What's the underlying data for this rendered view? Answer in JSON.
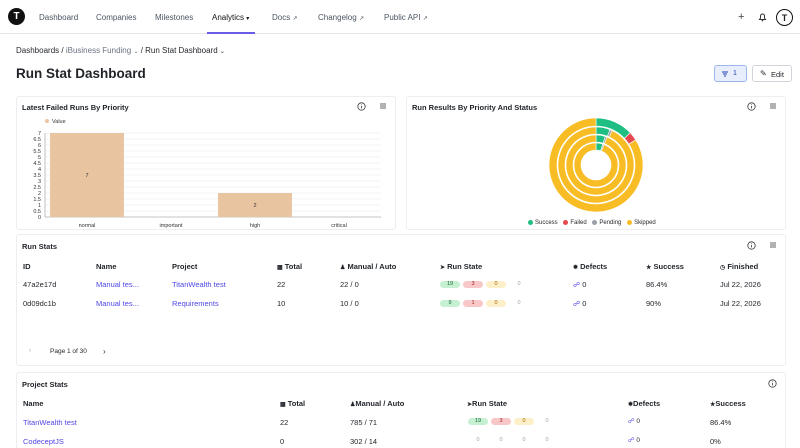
{
  "nav": {
    "items": [
      {
        "label": "Dashboard"
      },
      {
        "label": "Companies"
      },
      {
        "label": "Milestones"
      },
      {
        "label": "Analytics"
      },
      {
        "label": "Docs"
      },
      {
        "label": "Changelog"
      },
      {
        "label": "Public API"
      }
    ],
    "logo_letter": "T",
    "avatar_letter": "T"
  },
  "breadcrumb": {
    "root": "Dashboards",
    "company": "iBusiness Funding",
    "current": "Run Stat Dashboard"
  },
  "page_title": "Run Stat Dashboard",
  "toolbar": {
    "filter_count": "1",
    "edit_label": "Edit"
  },
  "card_failed": {
    "title": "Latest Failed Runs By Priority",
    "legend": "Value"
  },
  "card_results": {
    "title": "Run Results By Priority And Status",
    "legend": [
      "Success",
      "Failed",
      "Pending",
      "Skipped"
    ]
  },
  "colors": {
    "accent": "#6b5ce7",
    "success": "#1fbf83",
    "failed": "#e5484d",
    "pending": "#9aa0a6",
    "skipped": "#f8bd24",
    "bar": "#e9c4a1"
  },
  "chart_data": [
    {
      "type": "bar",
      "title": "Latest Failed Runs By Priority",
      "categories": [
        "normal",
        "important",
        "high",
        "critical"
      ],
      "values": [
        7,
        0,
        2,
        0
      ],
      "series": [
        {
          "name": "Value",
          "values": [
            7,
            0,
            2,
            0
          ]
        }
      ],
      "ylim": [
        0,
        7
      ],
      "yticks": [
        "0",
        "0.5",
        "1",
        "1.5",
        "2",
        "2.5",
        "3",
        "3.5",
        "4",
        "4.5",
        "5",
        "5.5",
        "6",
        "6.5",
        "7"
      ],
      "grid": true,
      "legend_position": "top-left"
    },
    {
      "type": "pie",
      "title": "Run Results By Priority And Status",
      "rings": [
        {
          "success": 0.13,
          "failed": 0.03,
          "pending": 0.0,
          "skipped": 0.84
        },
        {
          "success": 0.06,
          "failed": 0.0,
          "pending": 0.01,
          "skipped": 0.93
        },
        {
          "success": 0.05,
          "failed": 0.0,
          "pending": 0.01,
          "skipped": 0.94
        },
        {
          "success": 0.05,
          "failed": 0.0,
          "pending": 0.01,
          "skipped": 0.94
        }
      ],
      "legend": [
        "Success",
        "Failed",
        "Pending",
        "Skipped"
      ],
      "legend_position": "bottom"
    }
  ],
  "run_stats": {
    "title": "Run Stats",
    "headers": [
      "ID",
      "Name",
      "Project",
      "Total",
      "Manual / Auto",
      "Run State",
      "Defects",
      "Success",
      "Finished"
    ],
    "rows": [
      {
        "id": "47a2e17d",
        "name": "Manual tes...",
        "project": "TitanWealth test",
        "total": "22",
        "manual_auto": "22 / 0",
        "state": [
          "19",
          "3",
          "0",
          "0"
        ],
        "defects": "0",
        "success": "86.4%",
        "finished": "Jul 22, 2026"
      },
      {
        "id": "0d09dc1b",
        "name": "Manual tes...",
        "project": "Requirements",
        "total": "10",
        "manual_auto": "10 / 0",
        "state": [
          "9",
          "1",
          "0",
          "0"
        ],
        "defects": "0",
        "success": "90%",
        "finished": "Jul 22, 2026"
      }
    ],
    "pager": "Page 1 of 30"
  },
  "project_stats": {
    "title": "Project Stats",
    "headers": [
      "Name",
      "Total",
      "Manual / Auto",
      "Run State",
      "Defects",
      "Success"
    ],
    "rows": [
      {
        "name": "TitanWealth test",
        "total": "22",
        "manual_auto": "785 / 71",
        "state": [
          "19",
          "3",
          "0",
          "0"
        ],
        "defects": "0",
        "success": "86.4%"
      },
      {
        "name": "CodeceptJS",
        "total": "0",
        "manual_auto": "302 / 14",
        "state": [
          "0",
          "0",
          "0",
          "0"
        ],
        "defects": "0",
        "success": "0%"
      }
    ]
  }
}
